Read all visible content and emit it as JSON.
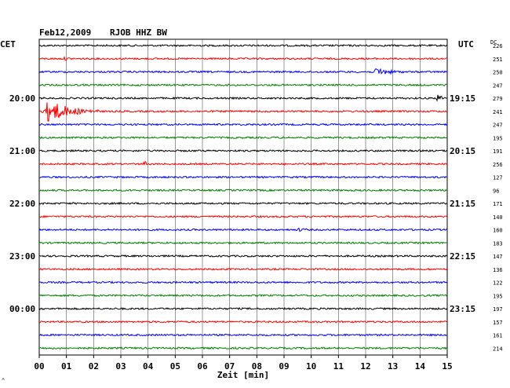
{
  "header": {
    "date": "Feb12,2009",
    "station": "RJOB HHZ BW",
    "left_zone": "CET",
    "right_zone": "UTC",
    "dc_label": "DC"
  },
  "colors": {
    "trace_cycle": [
      "#000000",
      "#ff0000",
      "#0000ff",
      "#007f00"
    ],
    "grid": "#000000",
    "background": "#ffffff"
  },
  "chart_data": {
    "type": "line",
    "xlabel": "Zeit [min]",
    "xlim": [
      0,
      15
    ],
    "x_ticks": [
      "00",
      "01",
      "02",
      "03",
      "04",
      "05",
      "06",
      "07",
      "08",
      "09",
      "10",
      "11",
      "12",
      "13",
      "14",
      "15"
    ],
    "row_count": 24,
    "left_time_labels": [
      {
        "row": 4,
        "label": "20:00"
      },
      {
        "row": 8,
        "label": "21:00"
      },
      {
        "row": 12,
        "label": "22:00"
      },
      {
        "row": 16,
        "label": "23:00"
      },
      {
        "row": 20,
        "label": "00:00"
      }
    ],
    "right_time_labels": [
      {
        "row": 4,
        "label": "19:15"
      },
      {
        "row": 8,
        "label": "20:15"
      },
      {
        "row": 12,
        "label": "21:15"
      },
      {
        "row": 16,
        "label": "22:15"
      },
      {
        "row": 20,
        "label": "23:15"
      }
    ],
    "dc_offsets": [
      226,
      251,
      250,
      247,
      279,
      241,
      247,
      195,
      191,
      256,
      127,
      96,
      171,
      140,
      160,
      183,
      147,
      136,
      122,
      195,
      197,
      157,
      161,
      214
    ],
    "events": [
      {
        "row": 1,
        "start_min": 0.9,
        "end_min": 1.2,
        "relative_amplitude": 0.5
      },
      {
        "row": 2,
        "start_min": 12.3,
        "end_min": 13.4,
        "relative_amplitude": 1.6
      },
      {
        "row": 4,
        "start_min": 14.6,
        "end_min": 15.0,
        "relative_amplitude": 1.5
      },
      {
        "row": 5,
        "start_min": 0.1,
        "end_min": 2.2,
        "relative_amplitude": 4.5
      },
      {
        "row": 9,
        "start_min": 3.8,
        "end_min": 4.1,
        "relative_amplitude": 1.2
      },
      {
        "row": 14,
        "start_min": 9.5,
        "end_min": 9.9,
        "relative_amplitude": 0.6
      }
    ]
  }
}
